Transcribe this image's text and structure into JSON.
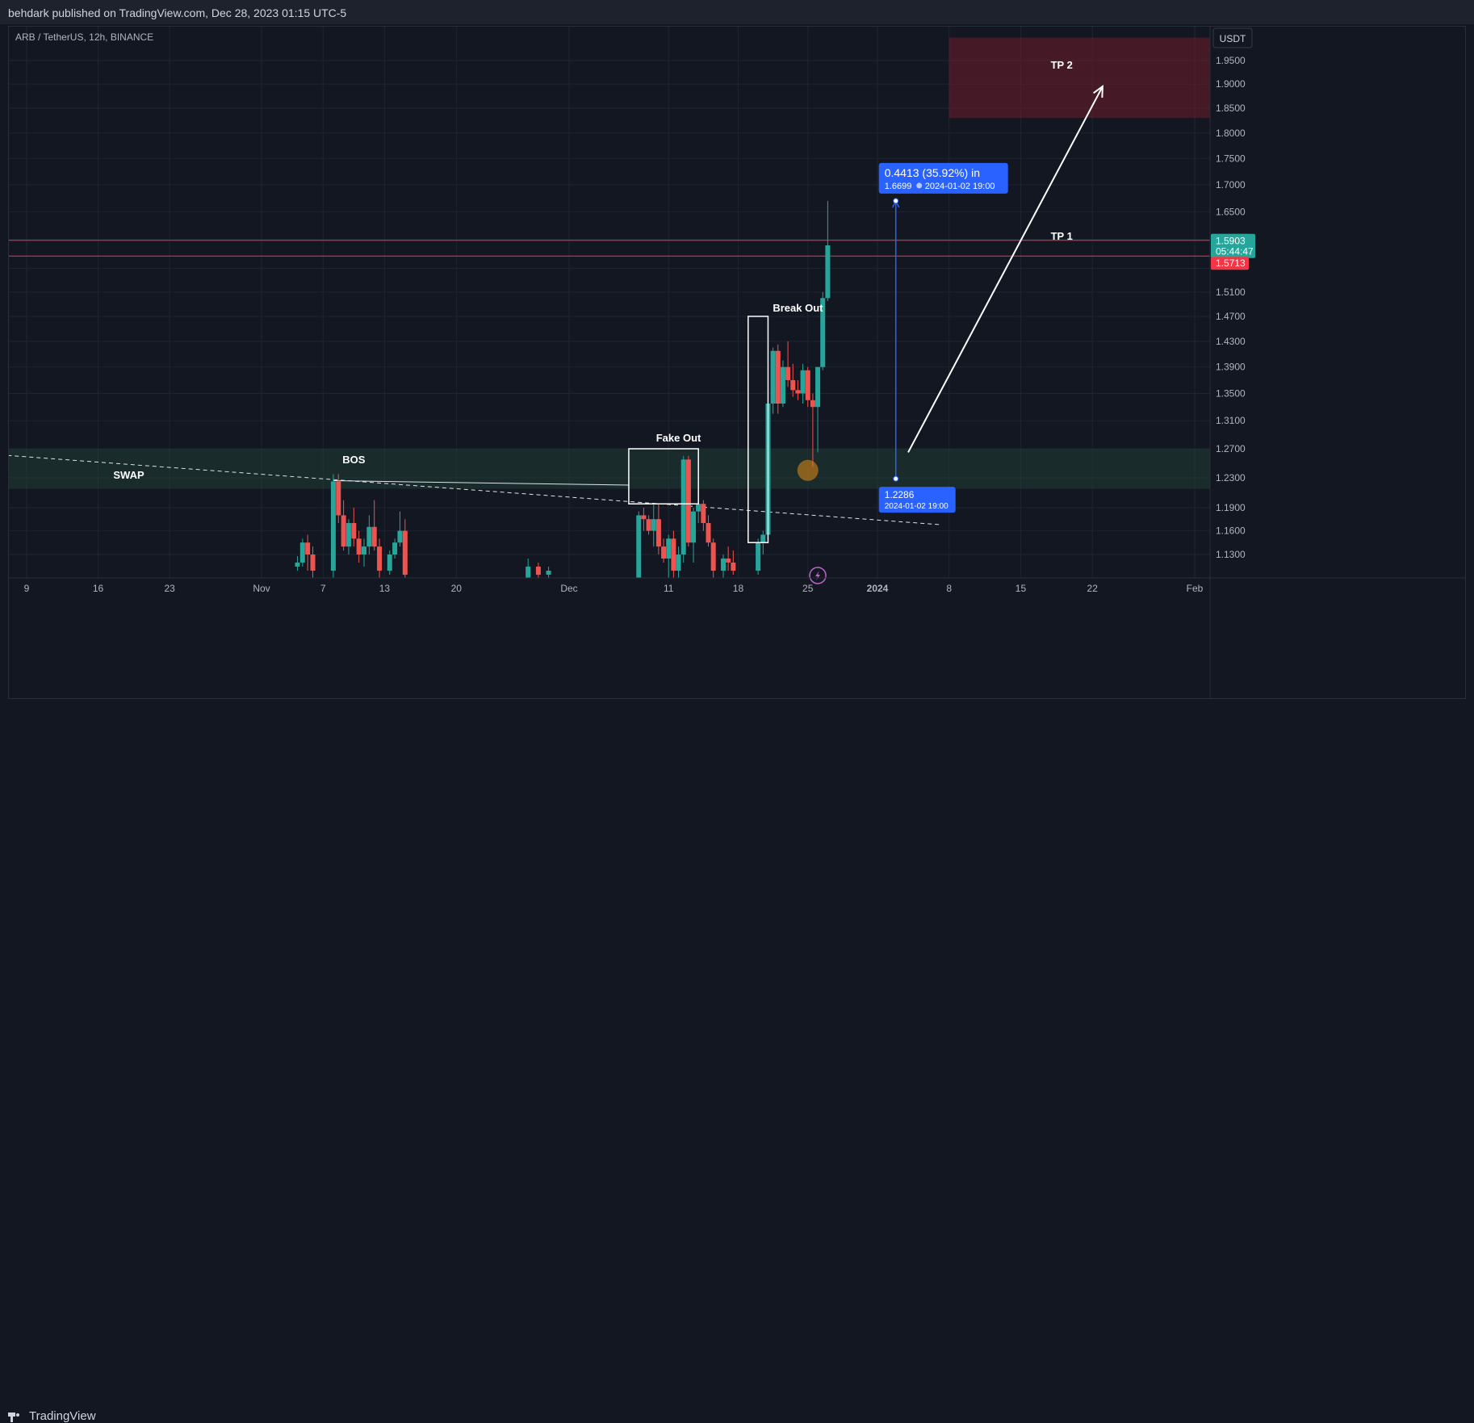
{
  "header": {
    "published": "behdark published on TradingView.com, Dec 28, 2023 01:15 UTC-5"
  },
  "footer": {
    "brand": "TradingView"
  },
  "colors": {
    "up": "#26a69a",
    "down": "#ef5350",
    "background": "#131722",
    "grid": "#1f2430",
    "measure": "#2962ff",
    "tp_line": "#f23645"
  },
  "chart_data": {
    "type": "candlestick",
    "symbol": "ARB / TetherUS, 12h, BINANCE",
    "currency": "USDT",
    "y_ticks": [
      1.13,
      1.16,
      1.19,
      1.23,
      1.27,
      1.31,
      1.35,
      1.39,
      1.43,
      1.47,
      1.51,
      1.55,
      1.6,
      1.65,
      1.7,
      1.75,
      1.8,
      1.85,
      1.9,
      1.95
    ],
    "y_tick_labels": [
      "1.1300",
      "1.1600",
      "1.1900",
      "1.2300",
      "1.2700",
      "1.3100",
      "1.3500",
      "1.3900",
      "1.4300",
      "1.4700",
      "1.5100",
      "1.5500",
      "1.6000",
      "1.6500",
      "1.7000",
      "1.7500",
      "1.8000",
      "1.8500",
      "1.9000",
      "1.9500"
    ],
    "x_labels": [
      {
        "date": "2023-10-09",
        "label": "9"
      },
      {
        "date": "2023-10-16",
        "label": "16"
      },
      {
        "date": "2023-10-23",
        "label": "23"
      },
      {
        "date": "2023-11-01",
        "label": "Nov"
      },
      {
        "date": "2023-11-07",
        "label": "7"
      },
      {
        "date": "2023-11-13",
        "label": "13"
      },
      {
        "date": "2023-11-20",
        "label": "20"
      },
      {
        "date": "2023-12-01",
        "label": "Dec"
      },
      {
        "date": "2023-12-11",
        "label": "11"
      },
      {
        "date": "2023-12-18",
        "label": "18"
      },
      {
        "date": "2023-12-25",
        "label": "25"
      },
      {
        "date": "2024-01-01",
        "label": "2024"
      },
      {
        "date": "2024-01-08",
        "label": "8"
      },
      {
        "date": "2024-01-15",
        "label": "15"
      },
      {
        "date": "2024-01-22",
        "label": "22"
      },
      {
        "date": "2024-02-01",
        "label": "Feb"
      }
    ],
    "candles": [
      {
        "t": "2023-11-04T12:00",
        "o": 1.115,
        "h": 1.128,
        "l": 1.11,
        "c": 1.12
      },
      {
        "t": "2023-11-05T00:00",
        "o": 1.12,
        "h": 1.15,
        "l": 1.115,
        "c": 1.145
      },
      {
        "t": "2023-11-05T12:00",
        "o": 1.145,
        "h": 1.155,
        "l": 1.11,
        "c": 1.13
      },
      {
        "t": "2023-11-06T00:00",
        "o": 1.13,
        "h": 1.14,
        "l": 1.1,
        "c": 1.11
      },
      {
        "t": "2023-11-08T00:00",
        "o": 1.11,
        "h": 1.235,
        "l": 1.1,
        "c": 1.225
      },
      {
        "t": "2023-11-08T12:00",
        "o": 1.225,
        "h": 1.235,
        "l": 1.17,
        "c": 1.18
      },
      {
        "t": "2023-11-09T00:00",
        "o": 1.18,
        "h": 1.2,
        "l": 1.135,
        "c": 1.14
      },
      {
        "t": "2023-11-09T12:00",
        "o": 1.14,
        "h": 1.175,
        "l": 1.13,
        "c": 1.17
      },
      {
        "t": "2023-11-10T00:00",
        "o": 1.17,
        "h": 1.19,
        "l": 1.14,
        "c": 1.15
      },
      {
        "t": "2023-11-10T12:00",
        "o": 1.15,
        "h": 1.16,
        "l": 1.12,
        "c": 1.13
      },
      {
        "t": "2023-11-11T00:00",
        "o": 1.13,
        "h": 1.15,
        "l": 1.115,
        "c": 1.14
      },
      {
        "t": "2023-11-11T12:00",
        "o": 1.14,
        "h": 1.18,
        "l": 1.13,
        "c": 1.165
      },
      {
        "t": "2023-11-12T00:00",
        "o": 1.165,
        "h": 1.2,
        "l": 1.135,
        "c": 1.14
      },
      {
        "t": "2023-11-12T12:00",
        "o": 1.14,
        "h": 1.15,
        "l": 1.1,
        "c": 1.11
      },
      {
        "t": "2023-11-13T12:00",
        "o": 1.11,
        "h": 1.135,
        "l": 1.105,
        "c": 1.13
      },
      {
        "t": "2023-11-14T00:00",
        "o": 1.13,
        "h": 1.15,
        "l": 1.125,
        "c": 1.145
      },
      {
        "t": "2023-11-14T12:00",
        "o": 1.145,
        "h": 1.185,
        "l": 1.14,
        "c": 1.16
      },
      {
        "t": "2023-11-15T00:00",
        "o": 1.16,
        "h": 1.175,
        "l": 1.1,
        "c": 1.105
      },
      {
        "t": "2023-11-27T00:00",
        "o": 1.1,
        "h": 1.125,
        "l": 1.095,
        "c": 1.115
      },
      {
        "t": "2023-11-28T00:00",
        "o": 1.115,
        "h": 1.12,
        "l": 1.1,
        "c": 1.105
      },
      {
        "t": "2023-11-29T00:00",
        "o": 1.105,
        "h": 1.115,
        "l": 1.095,
        "c": 1.11
      },
      {
        "t": "2023-12-08T00:00",
        "o": 1.1,
        "h": 1.185,
        "l": 1.095,
        "c": 1.18
      },
      {
        "t": "2023-12-08T12:00",
        "o": 1.18,
        "h": 1.19,
        "l": 1.16,
        "c": 1.175
      },
      {
        "t": "2023-12-09T00:00",
        "o": 1.175,
        "h": 1.18,
        "l": 1.155,
        "c": 1.16
      },
      {
        "t": "2023-12-09T12:00",
        "o": 1.16,
        "h": 1.195,
        "l": 1.14,
        "c": 1.175
      },
      {
        "t": "2023-12-10T00:00",
        "o": 1.175,
        "h": 1.195,
        "l": 1.13,
        "c": 1.14
      },
      {
        "t": "2023-12-10T12:00",
        "o": 1.14,
        "h": 1.15,
        "l": 1.12,
        "c": 1.125
      },
      {
        "t": "2023-12-11T00:00",
        "o": 1.125,
        "h": 1.155,
        "l": 1.1,
        "c": 1.15
      },
      {
        "t": "2023-12-11T12:00",
        "o": 1.15,
        "h": 1.16,
        "l": 1.1,
        "c": 1.11
      },
      {
        "t": "2023-12-12T00:00",
        "o": 1.11,
        "h": 1.14,
        "l": 1.09,
        "c": 1.13
      },
      {
        "t": "2023-12-12T12:00",
        "o": 1.13,
        "h": 1.26,
        "l": 1.12,
        "c": 1.255
      },
      {
        "t": "2023-12-13T00:00",
        "o": 1.255,
        "h": 1.26,
        "l": 1.14,
        "c": 1.145
      },
      {
        "t": "2023-12-13T12:00",
        "o": 1.145,
        "h": 1.19,
        "l": 1.12,
        "c": 1.185
      },
      {
        "t": "2023-12-14T00:00",
        "o": 1.185,
        "h": 1.2,
        "l": 1.17,
        "c": 1.195
      },
      {
        "t": "2023-12-14T12:00",
        "o": 1.195,
        "h": 1.2,
        "l": 1.16,
        "c": 1.17
      },
      {
        "t": "2023-12-15T00:00",
        "o": 1.17,
        "h": 1.18,
        "l": 1.14,
        "c": 1.145
      },
      {
        "t": "2023-12-15T12:00",
        "o": 1.145,
        "h": 1.15,
        "l": 1.1,
        "c": 1.11
      },
      {
        "t": "2023-12-16T12:00",
        "o": 1.11,
        "h": 1.13,
        "l": 1.1,
        "c": 1.125
      },
      {
        "t": "2023-12-17T00:00",
        "o": 1.125,
        "h": 1.14,
        "l": 1.11,
        "c": 1.12
      },
      {
        "t": "2023-12-17T12:00",
        "o": 1.12,
        "h": 1.135,
        "l": 1.105,
        "c": 1.11
      },
      {
        "t": "2023-12-20T00:00",
        "o": 1.11,
        "h": 1.15,
        "l": 1.105,
        "c": 1.145
      },
      {
        "t": "2023-12-20T12:00",
        "o": 1.145,
        "h": 1.16,
        "l": 1.13,
        "c": 1.155
      },
      {
        "t": "2023-12-21T00:00",
        "o": 1.155,
        "h": 1.34,
        "l": 1.15,
        "c": 1.335
      },
      {
        "t": "2023-12-21T12:00",
        "o": 1.335,
        "h": 1.42,
        "l": 1.32,
        "c": 1.415
      },
      {
        "t": "2023-12-22T00:00",
        "o": 1.415,
        "h": 1.425,
        "l": 1.32,
        "c": 1.335
      },
      {
        "t": "2023-12-22T12:00",
        "o": 1.335,
        "h": 1.4,
        "l": 1.33,
        "c": 1.39
      },
      {
        "t": "2023-12-23T00:00",
        "o": 1.39,
        "h": 1.43,
        "l": 1.36,
        "c": 1.37
      },
      {
        "t": "2023-12-23T12:00",
        "o": 1.37,
        "h": 1.395,
        "l": 1.345,
        "c": 1.355
      },
      {
        "t": "2023-12-24T00:00",
        "o": 1.355,
        "h": 1.37,
        "l": 1.34,
        "c": 1.35
      },
      {
        "t": "2023-12-24T12:00",
        "o": 1.35,
        "h": 1.395,
        "l": 1.335,
        "c": 1.385
      },
      {
        "t": "2023-12-25T00:00",
        "o": 1.385,
        "h": 1.39,
        "l": 1.33,
        "c": 1.34
      },
      {
        "t": "2023-12-25T12:00",
        "o": 1.34,
        "h": 1.35,
        "l": 1.245,
        "c": 1.33
      },
      {
        "t": "2023-12-26T00:00",
        "o": 1.33,
        "h": 1.39,
        "l": 1.265,
        "c": 1.39
      },
      {
        "t": "2023-12-26T12:00",
        "o": 1.39,
        "h": 1.51,
        "l": 1.385,
        "c": 1.5
      },
      {
        "t": "2023-12-27T00:00",
        "o": 1.5,
        "h": 1.67,
        "l": 1.495,
        "c": 1.59
      }
    ],
    "last_price": {
      "value": "1.5903",
      "countdown": "05:44:47"
    },
    "horizontal_lines": [
      {
        "value": 1.5988,
        "label": "1.5988"
      },
      {
        "value": 1.5713,
        "label": "1.5713"
      }
    ],
    "zones": [
      {
        "name": "support",
        "from_date": "2023-10-05",
        "to_date": "2024-02-03",
        "low": 1.215,
        "high": 1.27
      },
      {
        "name": "target",
        "from_date": "2024-01-08",
        "to_date": "2024-02-03",
        "low": 1.83,
        "high": 2.0
      }
    ],
    "trendlines": [
      {
        "name": "dashed-trendline",
        "style": "dashed",
        "from": {
          "date": "2023-10-05",
          "price": 1.263
        },
        "to": {
          "date": "2024-01-07",
          "price": 1.168
        }
      },
      {
        "name": "bos-line",
        "style": "solid",
        "from": {
          "date": "2023-11-08",
          "price": 1.226
        },
        "to": {
          "date": "2023-12-07",
          "price": 1.22
        }
      }
    ],
    "boxes": [
      {
        "name": "fake-out-box",
        "from_date": "2023-12-07",
        "to_date": "2023-12-14",
        "low": 1.195,
        "high": 1.27
      },
      {
        "name": "break-out-box",
        "from_date": "2023-12-19",
        "to_date": "2023-12-21",
        "low": 1.145,
        "high": 1.47
      }
    ],
    "arrow": {
      "from": {
        "date": "2024-01-04",
        "price": 1.265
      },
      "to": {
        "date": "2024-01-23",
        "price": 1.895
      }
    },
    "circle": {
      "date": "2023-12-25",
      "price": 1.24
    },
    "annotations": [
      {
        "text": "SWAP",
        "date": "2023-10-19",
        "price": 1.229
      },
      {
        "text": "BOS",
        "date": "2023-11-10",
        "price": 1.25
      },
      {
        "text": "Fake Out",
        "date": "2023-12-12",
        "price": 1.28
      },
      {
        "text": "Break Out",
        "date": "2023-12-24",
        "price": 1.478
      },
      {
        "text": "TP 1",
        "date": "2024-01-19",
        "price": 1.6
      },
      {
        "text": "TP 2",
        "date": "2024-01-19",
        "price": 1.933
      }
    ],
    "measure": {
      "date": "2024-01-02T19:00",
      "from": 1.2286,
      "to": 1.6699,
      "top_line1": "0.4413 (35.92%) in",
      "top_price": "1.6699",
      "top_time": "2024-01-02  19:00",
      "bottom_price": "1.2286",
      "bottom_time": "2024-01-02 19:00"
    }
  }
}
